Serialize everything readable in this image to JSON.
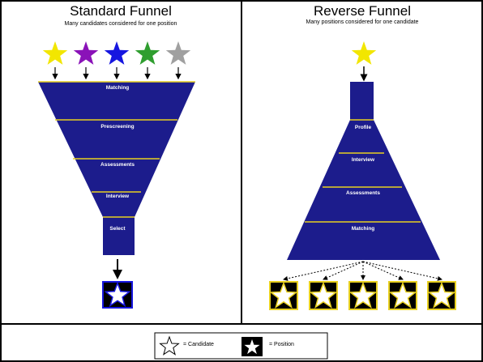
{
  "left_panel": {
    "title": "Standard Funnel",
    "subtitle": "Many candidates considered for one position",
    "star_colors": [
      "#f2e600",
      "#8a12b8",
      "#1616e0",
      "#2f9e2f",
      "#a0a0a0"
    ],
    "stages": [
      "Matching",
      "Prescreening",
      "Assessments",
      "Interview",
      "Select"
    ]
  },
  "right_panel": {
    "title": "Reverse Funnel",
    "subtitle": "Many positions considered for one candidate",
    "star_colors": [
      "#f2e600"
    ],
    "stages": [
      "Profile",
      "Interview",
      "Assessments",
      "Matching"
    ]
  },
  "legend": {
    "candidate_label": "= Candidate",
    "position_label": "= Position"
  },
  "colors": {
    "funnel_fill": "#1c1c8c",
    "stage_divider": "#e8d020",
    "position_box": "#000000",
    "position_border": "#e8d020",
    "stage_text": "#ffffff"
  }
}
